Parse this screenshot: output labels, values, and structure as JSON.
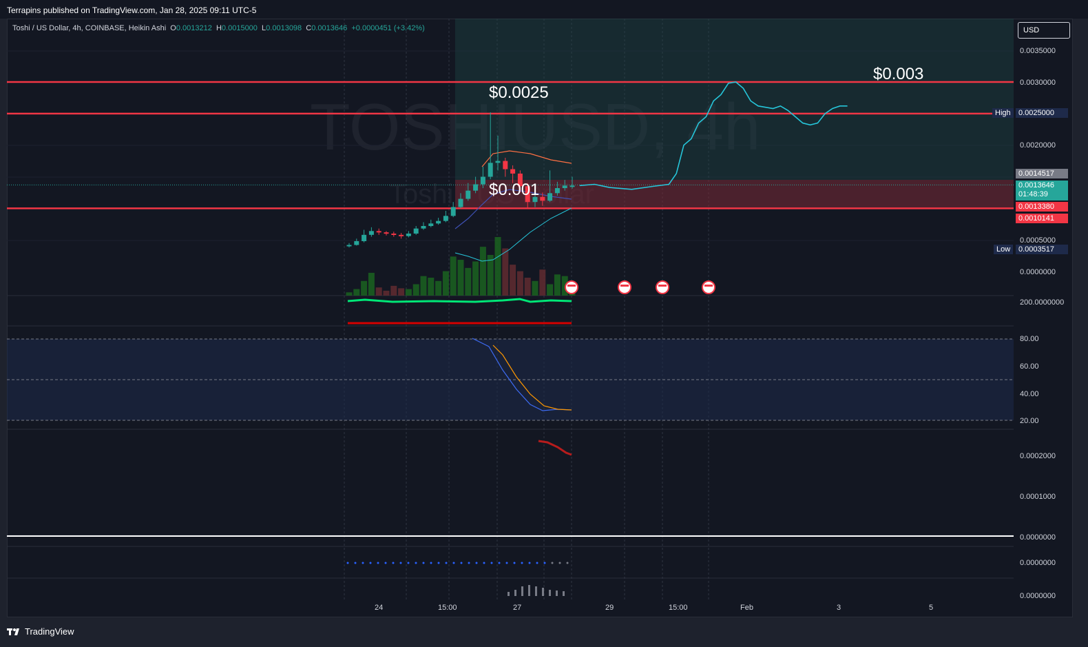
{
  "header": {
    "published": "Terrapins published on TradingView.com, Jan 28, 2025 09:11 UTC-5"
  },
  "footer": {
    "brand": "TradingView"
  },
  "legend": {
    "symbol": "Toshi / US Dollar, 4h, COINBASE, Heikin Ashi",
    "o_label": "O",
    "o": "0.0013212",
    "h_label": "H",
    "h": "0.0015000",
    "l_label": "L",
    "l": "0.0013098",
    "c_label": "C",
    "c": "0.0013646",
    "change": "+0.0000451 (+3.42%)"
  },
  "currency_button": "USD",
  "watermark": {
    "ticker": "TOSHIUSD, 4h",
    "name": "Toshi / US Dollar"
  },
  "annotations": {
    "a1": "$0.003",
    "a2": "$0.0025",
    "a3": "$0.001"
  },
  "price_axis": [
    "0.0035000",
    "0.0030000",
    "0.0025000",
    "0.0020000",
    "0.0005000",
    "0.0000000"
  ],
  "price_tags": {
    "high_label": "High",
    "high": "0.0025000",
    "t1": "0.0014517",
    "last": "0.0013646",
    "countdown": "01:48:39",
    "t2": "0.0013380",
    "t3": "0.0010141",
    "low_label": "Low",
    "low": "0.0003517"
  },
  "pane_axes": {
    "p1": "200.0000000",
    "rsi": [
      "80.00",
      "60.00",
      "40.00",
      "20.00"
    ],
    "p3": [
      "0.0002000",
      "0.0001000",
      "0.0000000"
    ],
    "p4": "0.0000000",
    "p5": "0.0000000"
  },
  "time_axis": [
    "24",
    "15:00",
    "27",
    "29",
    "15:00",
    "Feb",
    "3",
    "5"
  ],
  "colors": {
    "up": "#26a69a",
    "down": "#f23645",
    "level": "#f23645",
    "forecast": "#26c6da",
    "background": "#131722"
  },
  "chart_data": {
    "type": "candlestick",
    "title": "Toshi / US Dollar, 4h, COINBASE, Heikin Ashi",
    "ylim": [
      0,
      0.0037
    ],
    "levels": [
      0.003,
      0.0025,
      0.001
    ],
    "candles": [
      {
        "o": 0.0004,
        "c": 0.00042,
        "h": 0.00045,
        "l": 0.00038
      },
      {
        "o": 0.00042,
        "c": 0.00048,
        "h": 0.00052,
        "l": 0.00041
      },
      {
        "o": 0.00048,
        "c": 0.00058,
        "h": 0.00066,
        "l": 0.00046
      },
      {
        "o": 0.00058,
        "c": 0.00064,
        "h": 0.0007,
        "l": 0.00055
      },
      {
        "o": 0.00064,
        "c": 0.00062,
        "h": 0.00068,
        "l": 0.00058
      },
      {
        "o": 0.00062,
        "c": 0.0006,
        "h": 0.00064,
        "l": 0.00057
      },
      {
        "o": 0.0006,
        "c": 0.00058,
        "h": 0.00063,
        "l": 0.00055
      },
      {
        "o": 0.00058,
        "c": 0.00056,
        "h": 0.00061,
        "l": 0.00052
      },
      {
        "o": 0.00056,
        "c": 0.0006,
        "h": 0.00064,
        "l": 0.00054
      },
      {
        "o": 0.0006,
        "c": 0.00068,
        "h": 0.00072,
        "l": 0.00058
      },
      {
        "o": 0.00068,
        "c": 0.00072,
        "h": 0.00078,
        "l": 0.00066
      },
      {
        "o": 0.00072,
        "c": 0.00076,
        "h": 0.00082,
        "l": 0.0007
      },
      {
        "o": 0.00076,
        "c": 0.0008,
        "h": 0.00085,
        "l": 0.00074
      },
      {
        "o": 0.0008,
        "c": 0.00088,
        "h": 0.00096,
        "l": 0.00078
      },
      {
        "o": 0.00088,
        "c": 0.00102,
        "h": 0.0011,
        "l": 0.00086
      },
      {
        "o": 0.00102,
        "c": 0.00115,
        "h": 0.00124,
        "l": 0.001
      },
      {
        "o": 0.00115,
        "c": 0.00128,
        "h": 0.0014,
        "l": 0.00112
      },
      {
        "o": 0.00128,
        "c": 0.00138,
        "h": 0.0015,
        "l": 0.00124
      },
      {
        "o": 0.00138,
        "c": 0.0015,
        "h": 0.00166,
        "l": 0.00132
      },
      {
        "o": 0.0015,
        "c": 0.00172,
        "h": 0.00252,
        "l": 0.00146
      },
      {
        "o": 0.00172,
        "c": 0.00175,
        "h": 0.00215,
        "l": 0.0016
      },
      {
        "o": 0.00175,
        "c": 0.00162,
        "h": 0.0018,
        "l": 0.0015
      },
      {
        "o": 0.00162,
        "c": 0.00155,
        "h": 0.00168,
        "l": 0.0014
      },
      {
        "o": 0.00155,
        "c": 0.00135,
        "h": 0.0016,
        "l": 0.00125
      },
      {
        "o": 0.00135,
        "c": 0.0011,
        "h": 0.0014,
        "l": 0.001
      },
      {
        "o": 0.0011,
        "c": 0.00118,
        "h": 0.00128,
        "l": 0.00102
      },
      {
        "o": 0.00118,
        "c": 0.00112,
        "h": 0.00125,
        "l": 0.00104
      },
      {
        "o": 0.00112,
        "c": 0.00124,
        "h": 0.0016,
        "l": 0.0011
      },
      {
        "o": 0.00124,
        "c": 0.00132,
        "h": 0.00142,
        "l": 0.0012
      },
      {
        "o": 0.00132,
        "c": 0.00136,
        "h": 0.00145,
        "l": 0.00128
      },
      {
        "o": 0.00136,
        "c": 0.00136,
        "h": 0.0015,
        "l": 0.00131
      }
    ],
    "volume": [
      4,
      8,
      18,
      28,
      10,
      6,
      12,
      9,
      8,
      14,
      24,
      22,
      18,
      30,
      48,
      44,
      34,
      42,
      60,
      50,
      72,
      58,
      38,
      30,
      22,
      18,
      32,
      14,
      26,
      24,
      10
    ],
    "forecast_path": [
      [
        31,
        0.00136
      ],
      [
        33,
        0.00138
      ],
      [
        35,
        0.00133
      ],
      [
        38,
        0.0013
      ],
      [
        41,
        0.00135
      ],
      [
        43,
        0.00138
      ],
      [
        44,
        0.00155
      ],
      [
        45,
        0.002
      ],
      [
        46,
        0.0021
      ],
      [
        47,
        0.00235
      ],
      [
        48,
        0.00245
      ],
      [
        49,
        0.0027
      ],
      [
        50,
        0.0028
      ],
      [
        51,
        0.00298
      ],
      [
        52,
        0.003
      ],
      [
        53,
        0.0029
      ],
      [
        54,
        0.0027
      ],
      [
        55,
        0.00262
      ],
      [
        56,
        0.0026
      ],
      [
        57,
        0.00258
      ],
      [
        58,
        0.00262
      ],
      [
        59,
        0.00255
      ],
      [
        60,
        0.00245
      ],
      [
        61,
        0.00235
      ],
      [
        62,
        0.00232
      ],
      [
        63,
        0.00235
      ],
      [
        64,
        0.0025
      ],
      [
        65,
        0.00258
      ],
      [
        66,
        0.00262
      ],
      [
        67,
        0.00262
      ]
    ]
  }
}
